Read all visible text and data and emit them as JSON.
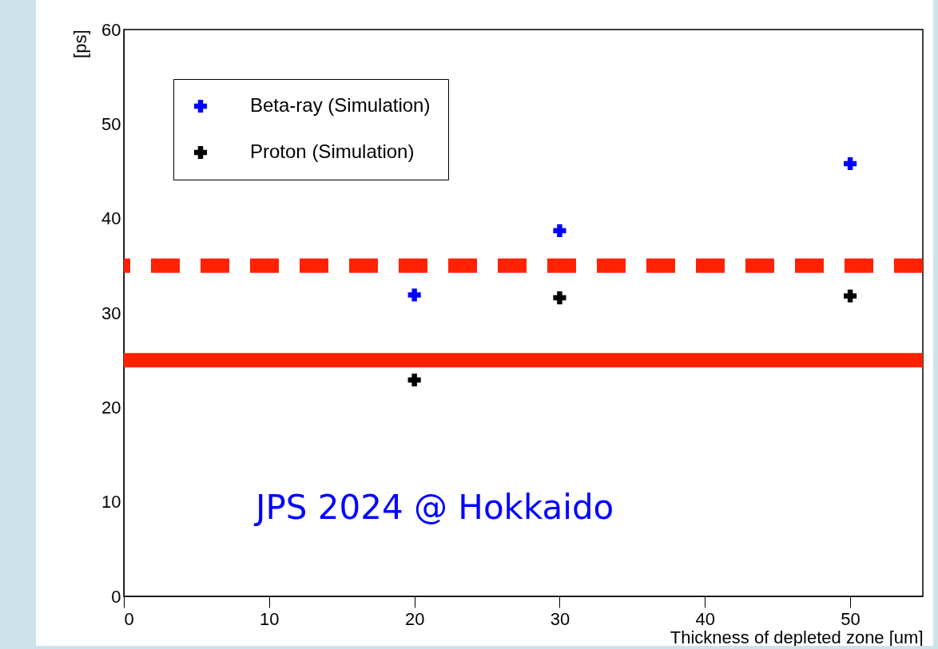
{
  "chart_data": {
    "type": "scatter",
    "xlabel": "Thickness of depleted zone [um]",
    "ylabel": "[ps]",
    "series": [
      {
        "name": "Beta-ray (Simulation)",
        "color": "#0000ff",
        "x": [
          20,
          30,
          50
        ],
        "values": [
          31.9,
          38.7,
          45.8
        ]
      },
      {
        "name": "Proton (Simulation)",
        "color": "#000000",
        "x": [
          20,
          30,
          50
        ],
        "values": [
          22.9,
          31.6,
          31.8
        ]
      }
    ],
    "xlim": [
      0,
      55
    ],
    "xticks": [
      0,
      10,
      20,
      30,
      40,
      50
    ],
    "ylim": [
      0,
      60
    ],
    "yticks": [
      0,
      10,
      20,
      30,
      40,
      50,
      60
    ],
    "ref_lines": [
      {
        "axis": "y",
        "value": 35,
        "label": null,
        "color": "#ff2200",
        "line_style": "dashed"
      },
      {
        "axis": "y",
        "value": 25,
        "label": null,
        "color": "#ff2200",
        "line_style": "solid"
      }
    ],
    "annotations": [
      "JPS 2024 @ Hokkaido"
    ],
    "marker": "cross",
    "legend": "top left",
    "grid": false
  }
}
